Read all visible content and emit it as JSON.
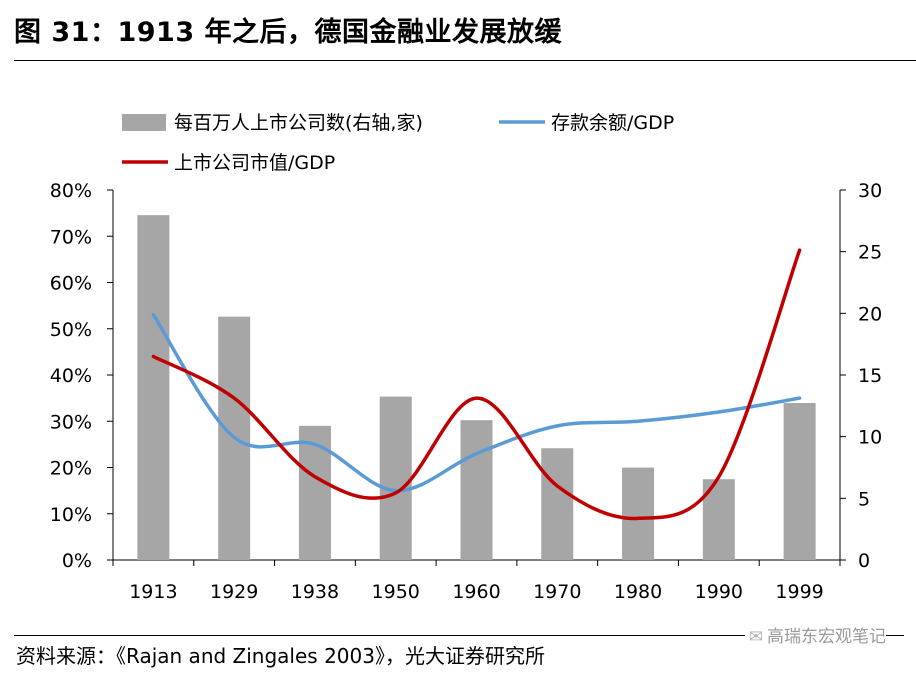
{
  "title": "图 31：1913 年之后，德国金融业发展放缓",
  "source": "资料来源：《Rajan and Zingales 2003》，光大证券研究所",
  "watermark": "高瑞东宏观笔记",
  "colors": {
    "bar": "#a6a6a6",
    "deposits": "#5b9bd5",
    "market_cap": "#c00000"
  },
  "chart_data": {
    "type": "bar+line",
    "categories": [
      "1913",
      "1929",
      "1938",
      "1950",
      "1960",
      "1970",
      "1980",
      "1990",
      "1999"
    ],
    "y_left_ticks": [
      "0%",
      "10%",
      "20%",
      "30%",
      "40%",
      "50%",
      "60%",
      "70%",
      "80%"
    ],
    "y_left_lim": [
      0,
      0.8
    ],
    "y_right_ticks": [
      "0",
      "5",
      "10",
      "15",
      "20",
      "25",
      "30"
    ],
    "y_right_lim": [
      0,
      30
    ],
    "legend_position": "top-left",
    "series": [
      {
        "name": "每百万人上市公司数(右轴,家)",
        "type": "bar",
        "axis": "right",
        "values": [
          27.96,
          19.73,
          10.88,
          13.25,
          11.34,
          9.06,
          7.49,
          6.55,
          12.73
        ]
      },
      {
        "name": "存款余额/GDP",
        "type": "line",
        "axis": "left",
        "values": [
          0.53,
          0.265,
          0.25,
          0.15,
          0.23,
          0.29,
          0.3,
          0.32,
          0.35
        ]
      },
      {
        "name": "上市公司市值/GDP",
        "type": "line",
        "axis": "left",
        "values": [
          0.44,
          0.35,
          0.18,
          0.145,
          0.35,
          0.16,
          0.09,
          0.18,
          0.67
        ]
      }
    ]
  }
}
